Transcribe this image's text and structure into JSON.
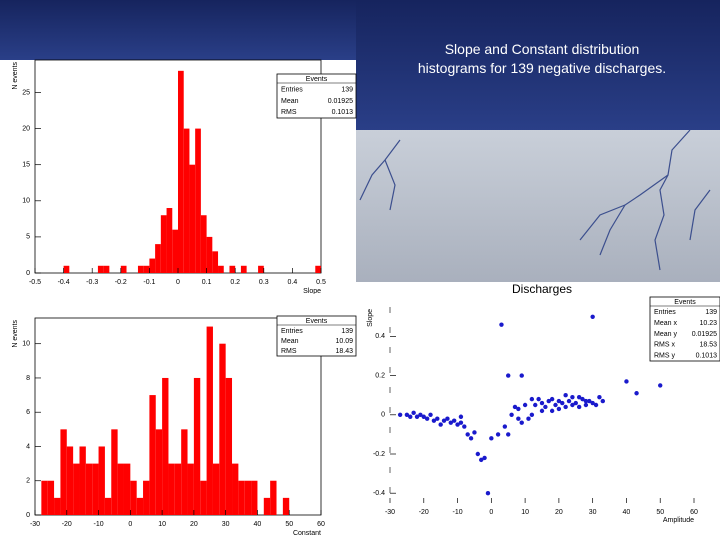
{
  "slide": {
    "title": "Slope and Constant distribution histograms for 139 negative discharges."
  },
  "chart_data": [
    {
      "type": "histogram",
      "x_label": "Slope",
      "y_label": "N events",
      "color": "#ff0000",
      "bins": [
        -0.5,
        -0.48,
        -0.46,
        -0.44,
        -0.42,
        -0.4,
        -0.38,
        -0.36,
        -0.34,
        -0.32,
        -0.3,
        -0.28,
        -0.26,
        -0.24,
        -0.22,
        -0.2,
        -0.18,
        -0.16,
        -0.14,
        -0.12,
        -0.1,
        -0.08,
        -0.06,
        -0.04,
        -0.02,
        0,
        0.02,
        0.04,
        0.06,
        0.08,
        0.1,
        0.12,
        0.14,
        0.16,
        0.18,
        0.2,
        0.22,
        0.24,
        0.26,
        0.28,
        0.3,
        0.32,
        0.34,
        0.36,
        0.38,
        0.4,
        0.42,
        0.44,
        0.46,
        0.48,
        0.5
      ],
      "counts": [
        0,
        0,
        0,
        0,
        0,
        1,
        0,
        0,
        0,
        0,
        0,
        1,
        1,
        0,
        0,
        1,
        0,
        0,
        1,
        1,
        2,
        4,
        8,
        9,
        6,
        28,
        20,
        15,
        20,
        8,
        5,
        3,
        1,
        0,
        1,
        0,
        1,
        0,
        0,
        1,
        0,
        0,
        0,
        0,
        0,
        0,
        0,
        0,
        0,
        1
      ],
      "xlim": [
        -0.5,
        0.5
      ],
      "ylim": [
        0,
        29.5
      ],
      "xticks": [
        -0.5,
        -0.4,
        -0.3,
        -0.2,
        -0.1,
        0,
        0.1,
        0.2,
        0.3,
        0.4,
        0.5
      ],
      "yticks": [
        0,
        5,
        10,
        15,
        20,
        25
      ],
      "stats": {
        "title": "Events",
        "rows": [
          {
            "name": "Entries",
            "value": 139
          },
          {
            "name": "Mean",
            "value": 0.01925
          },
          {
            "name": "RMS",
            "value": 0.1013
          }
        ]
      }
    },
    {
      "type": "histogram",
      "x_label": "Constant",
      "y_label": "N events",
      "color": "#ff0000",
      "bins": [
        -30,
        -28,
        -26,
        -24,
        -22,
        -20,
        -18,
        -16,
        -14,
        -12,
        -10,
        -8,
        -6,
        -4,
        -2,
        0,
        2,
        4,
        6,
        8,
        10,
        12,
        14,
        16,
        18,
        20,
        22,
        24,
        26,
        28,
        30,
        32,
        34,
        36,
        38,
        40,
        42,
        44,
        46,
        48,
        50,
        52,
        54,
        56,
        58,
        60
      ],
      "counts": [
        0,
        2,
        2,
        1,
        5,
        4,
        3,
        4,
        3,
        3,
        4,
        1,
        5,
        3,
        3,
        2,
        1,
        2,
        7,
        5,
        8,
        3,
        3,
        5,
        3,
        8,
        2,
        11,
        3,
        10,
        8,
        3,
        2,
        2,
        2,
        0,
        1,
        2,
        0,
        1,
        0,
        0,
        0,
        0,
        0
      ],
      "xlim": [
        -30,
        60
      ],
      "ylim": [
        0,
        11.5
      ],
      "xticks": [
        -30,
        -20,
        -10,
        0,
        10,
        20,
        30,
        40,
        50,
        60
      ],
      "yticks": [
        0,
        2,
        4,
        6,
        8,
        10
      ],
      "stats": {
        "title": "Events",
        "rows": [
          {
            "name": "Entries",
            "value": 139
          },
          {
            "name": "Mean",
            "value": 10.09
          },
          {
            "name": "RMS",
            "value": 18.43
          }
        ]
      }
    },
    {
      "type": "scatter",
      "title": "Discharges",
      "x_label": "Amplitude",
      "y_label": "Slope",
      "color": "#1a1acc",
      "x": [
        -27,
        -25,
        -24,
        -22,
        -20,
        -19,
        -18,
        -17,
        -16,
        -15,
        -14,
        -13,
        -12,
        -11,
        -10,
        -9,
        -8,
        -9,
        -7,
        -6,
        -4,
        -3,
        -2,
        -1,
        3,
        5,
        4,
        5,
        6,
        7,
        8,
        9,
        10,
        11,
        12,
        13,
        14,
        15,
        16,
        17,
        18,
        19,
        20,
        21,
        22,
        23,
        24,
        25,
        26,
        27,
        28,
        29,
        30,
        31,
        32,
        33,
        30,
        40,
        43,
        50,
        9,
        18,
        22,
        26,
        8,
        2,
        0,
        -5,
        -21,
        -23,
        12,
        15,
        20,
        24,
        28
      ],
      "y": [
        0,
        0,
        -0.01,
        -0.01,
        -0.01,
        -0.02,
        0,
        -0.03,
        -0.02,
        -0.05,
        -0.03,
        -0.02,
        -0.04,
        -0.03,
        -0.05,
        -0.04,
        -0.06,
        -0.01,
        -0.1,
        -0.12,
        -0.2,
        -0.23,
        -0.22,
        -0.4,
        0.46,
        0.2,
        -0.06,
        -0.1,
        0,
        0.04,
        0.03,
        -0.04,
        0.05,
        -0.02,
        0,
        0.05,
        0.08,
        0.02,
        0.04,
        0.07,
        0.02,
        0.05,
        0.03,
        0.06,
        0.04,
        0.07,
        0.05,
        0.06,
        0.04,
        0.08,
        0.05,
        0.07,
        0.06,
        0.05,
        0.09,
        0.07,
        0.5,
        0.17,
        0.11,
        0.15,
        0.2,
        0.08,
        0.1,
        0.09,
        -0.02,
        -0.1,
        -0.12,
        -0.09,
        0,
        0.01,
        0.08,
        0.06,
        0.07,
        0.09,
        0.07
      ],
      "xlim": [
        -30,
        60
      ],
      "ylim": [
        -0.45,
        0.55
      ],
      "xticks": [
        -30,
        -20,
        -10,
        0,
        10,
        20,
        30,
        40,
        50,
        60
      ],
      "yticks": [
        -0.4,
        -0.2,
        0,
        0.2,
        0.4
      ],
      "stats": {
        "title": "Events",
        "rows": [
          {
            "name": "Entries",
            "value": 139
          },
          {
            "name": "Mean x",
            "value": 10.23
          },
          {
            "name": "Mean y",
            "value": 0.01925
          },
          {
            "name": "RMS x",
            "value": 18.53
          },
          {
            "name": "RMS y",
            "value": 0.1013
          }
        ]
      }
    }
  ]
}
